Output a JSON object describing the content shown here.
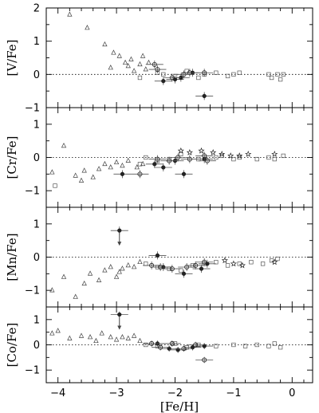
{
  "chart_data": {
    "type": "scatter",
    "xlabel": "[Fe/H]",
    "xlim": [
      -4.2,
      0.35
    ],
    "x_ticks": [
      "−4",
      "−3",
      "−2",
      "−1",
      "0"
    ],
    "panels": [
      {
        "ylabel": "[V/Fe]",
        "ylim": [
          -1.0,
          2.0
        ],
        "y_ticks": [
          "2",
          "1",
          "0",
          "−1"
        ],
        "series": [
          {
            "marker": "triangle",
            "points": [
              [
                -3.8,
                1.8
              ],
              [
                -3.5,
                1.4
              ],
              [
                -3.2,
                0.9
              ],
              [
                -3.05,
                0.65
              ],
              [
                -2.95,
                0.55
              ],
              [
                -2.85,
                0.35
              ],
              [
                -3.1,
                0.2
              ],
              [
                -2.75,
                0.45
              ],
              [
                -2.6,
                0.3
              ],
              [
                -2.5,
                0.15
              ],
              [
                -2.7,
                0.1
              ],
              [
                -2.55,
                0.55
              ],
              [
                -2.45,
                0.35
              ],
              [
                -2.8,
                0.25
              ]
            ]
          },
          {
            "marker": "square",
            "points": [
              [
                -2.6,
                -0.1
              ],
              [
                -2.3,
                0.05
              ],
              [
                -2.2,
                0.0
              ],
              [
                -2.0,
                -0.05
              ],
              [
                -1.8,
                0.1
              ],
              [
                -1.6,
                -0.1
              ],
              [
                -1.5,
                0.0
              ],
              [
                -1.3,
                0.05
              ],
              [
                -1.1,
                -0.05
              ],
              [
                -1.0,
                0.0
              ],
              [
                -0.9,
                0.05
              ],
              [
                -0.4,
                0.0
              ],
              [
                -0.35,
                -0.1
              ],
              [
                -0.25,
                0.0
              ],
              [
                -0.2,
                -0.15
              ],
              [
                -0.15,
                0.0
              ]
            ]
          },
          {
            "marker": "filled-circle",
            "points": [
              [
                -2.2,
                -0.2
              ],
              [
                -2.0,
                -0.15
              ],
              [
                -1.7,
                0.05
              ],
              [
                -1.5,
                -0.65
              ],
              [
                -1.9,
                -0.1
              ]
            ]
          },
          {
            "marker": "open-circle-errorbar",
            "points": [
              [
                -2.35,
                0.3
              ],
              [
                -2.3,
                0.15
              ],
              [
                -1.75,
                0.05
              ],
              [
                -1.5,
                0.05
              ],
              [
                -2.05,
                -0.1
              ],
              [
                -1.85,
                0.0
              ]
            ]
          }
        ]
      },
      {
        "ylabel": "[Cr/Fe]",
        "ylim": [
          -1.5,
          1.5
        ],
        "y_ticks": [
          "1",
          "0",
          "−1"
        ],
        "series": [
          {
            "marker": "triangle",
            "points": [
              [
                -4.1,
                -0.45
              ],
              [
                -3.9,
                0.35
              ],
              [
                -3.7,
                -0.55
              ],
              [
                -3.6,
                -0.7
              ],
              [
                -3.55,
                -0.4
              ],
              [
                -3.4,
                -0.6
              ],
              [
                -3.3,
                -0.35
              ],
              [
                -3.2,
                -0.2
              ],
              [
                -3.1,
                -0.3
              ],
              [
                -3.0,
                -0.15
              ],
              [
                -2.9,
                -0.25
              ],
              [
                -2.8,
                -0.1
              ],
              [
                -2.65,
                -0.3
              ],
              [
                -2.55,
                -0.2
              ]
            ]
          },
          {
            "marker": "square",
            "points": [
              [
                -4.05,
                -0.85
              ],
              [
                -2.6,
                -0.2
              ],
              [
                -2.5,
                0.0
              ],
              [
                -2.3,
                -0.1
              ],
              [
                -2.1,
                -0.05
              ],
              [
                -1.9,
                0.1
              ],
              [
                -1.6,
                -0.05
              ],
              [
                -1.3,
                0.0
              ],
              [
                -1.2,
                0.05
              ],
              [
                -1.0,
                -0.05
              ],
              [
                -0.9,
                0.0
              ],
              [
                -0.6,
                -0.05
              ],
              [
                -0.4,
                0.0
              ],
              [
                -0.3,
                -0.05
              ],
              [
                -0.15,
                0.05
              ]
            ]
          },
          {
            "marker": "star",
            "points": [
              [
                -1.9,
                0.2
              ],
              [
                -1.75,
                0.15
              ],
              [
                -1.55,
                0.2
              ],
              [
                -1.35,
                0.15
              ],
              [
                -1.2,
                0.1
              ],
              [
                -1.05,
                0.05
              ],
              [
                -0.9,
                0.05
              ],
              [
                -0.75,
                0.1
              ],
              [
                -0.3,
                0.1
              ]
            ]
          },
          {
            "marker": "filled-circle",
            "points": [
              [
                -2.9,
                -0.5
              ],
              [
                -2.35,
                -0.2
              ],
              [
                -2.2,
                -0.3
              ],
              [
                -2.0,
                -0.1
              ],
              [
                -1.85,
                -0.5
              ],
              [
                -1.5,
                -0.05
              ]
            ]
          },
          {
            "marker": "open-circle-errorbar",
            "points": [
              [
                -2.6,
                -0.5
              ],
              [
                -2.3,
                -0.05
              ],
              [
                -2.1,
                -0.1
              ],
              [
                -1.95,
                0.0
              ],
              [
                -1.75,
                -0.05
              ],
              [
                -1.5,
                0.05
              ],
              [
                -1.45,
                -0.1
              ]
            ]
          }
        ]
      },
      {
        "ylabel": "[Mn/Fe]",
        "ylim": [
          -1.5,
          1.5
        ],
        "y_ticks": [
          "1",
          "0",
          "−1"
        ],
        "series": [
          {
            "marker": "triangle",
            "points": [
              [
                -4.1,
                -1.0
              ],
              [
                -3.9,
                -0.6
              ],
              [
                -3.7,
                -1.2
              ],
              [
                -3.55,
                -0.8
              ],
              [
                -3.45,
                -0.5
              ],
              [
                -3.3,
                -0.7
              ],
              [
                -3.2,
                -0.4
              ],
              [
                -3.1,
                -0.3
              ],
              [
                -3.0,
                -0.6
              ],
              [
                -2.95,
                -0.45
              ],
              [
                -2.9,
                -0.35
              ],
              [
                -2.8,
                -0.25
              ],
              [
                -2.7,
                -0.3
              ],
              [
                -2.6,
                -0.15
              ]
            ]
          },
          {
            "marker": "square",
            "points": [
              [
                -2.5,
                -0.2
              ],
              [
                -2.3,
                -0.3
              ],
              [
                -2.1,
                -0.35
              ],
              [
                -1.9,
                -0.4
              ],
              [
                -1.7,
                -0.25
              ],
              [
                -1.5,
                -0.2
              ],
              [
                -1.3,
                -0.15
              ],
              [
                -1.1,
                -0.25
              ],
              [
                -0.9,
                -0.2
              ],
              [
                -0.7,
                -0.15
              ],
              [
                -0.5,
                -0.2
              ],
              [
                -0.35,
                -0.1
              ],
              [
                -0.25,
                -0.05
              ]
            ]
          },
          {
            "marker": "star",
            "points": [
              [
                -1.15,
                -0.1
              ],
              [
                -1.0,
                -0.2
              ],
              [
                -0.85,
                -0.25
              ],
              [
                -0.3,
                -0.15
              ]
            ]
          },
          {
            "marker": "filled-circle",
            "points": [
              [
                -2.95,
                0.8
              ],
              [
                -2.3,
                0.05
              ],
              [
                -2.2,
                -0.3
              ],
              [
                -1.85,
                -0.5
              ],
              [
                -1.55,
                -0.35
              ],
              [
                -1.45,
                -0.2
              ]
            ]
          },
          {
            "marker": "open-circle-errorbar",
            "points": [
              [
                -2.4,
                -0.25
              ],
              [
                -2.25,
                -0.3
              ],
              [
                -2.05,
                -0.35
              ],
              [
                -1.8,
                -0.3
              ],
              [
                -1.65,
                -0.25
              ],
              [
                -1.5,
                -0.15
              ]
            ]
          }
        ]
      },
      {
        "ylabel": "[Co/Fe]",
        "ylim": [
          -1.5,
          1.5
        ],
        "y_ticks": [
          "1",
          "0",
          "−1"
        ],
        "series": [
          {
            "marker": "triangle",
            "points": [
              [
                -4.1,
                0.45
              ],
              [
                -4.0,
                0.55
              ],
              [
                -3.8,
                0.25
              ],
              [
                -3.6,
                0.35
              ],
              [
                -3.45,
                0.3
              ],
              [
                -3.35,
                0.15
              ],
              [
                -3.25,
                0.45
              ],
              [
                -3.1,
                0.3
              ],
              [
                -3.0,
                0.2
              ],
              [
                -2.9,
                0.3
              ],
              [
                -2.8,
                0.25
              ],
              [
                -2.7,
                0.35
              ],
              [
                -2.6,
                0.15
              ]
            ]
          },
          {
            "marker": "square",
            "points": [
              [
                -2.5,
                0.0
              ],
              [
                -2.3,
                -0.05
              ],
              [
                -2.0,
                0.05
              ],
              [
                -1.8,
                -0.1
              ],
              [
                -1.6,
                0.0
              ],
              [
                -1.3,
                -0.05
              ],
              [
                -1.0,
                0.0
              ],
              [
                -0.8,
                -0.05
              ],
              [
                -0.6,
                0.0
              ],
              [
                -0.4,
                -0.05
              ],
              [
                -0.3,
                0.05
              ],
              [
                -0.2,
                -0.1
              ]
            ]
          },
          {
            "marker": "filled-circle",
            "points": [
              [
                -2.95,
                1.2
              ],
              [
                -2.3,
                0.05
              ],
              [
                -2.1,
                -0.15
              ],
              [
                -1.95,
                -0.2
              ],
              [
                -1.7,
                -0.1
              ],
              [
                -1.5,
                -0.05
              ]
            ]
          },
          {
            "marker": "open-circle-errorbar",
            "points": [
              [
                -2.4,
                0.05
              ],
              [
                -2.25,
                -0.1
              ],
              [
                -2.05,
                0.05
              ],
              [
                -1.85,
                -0.15
              ],
              [
                -1.65,
                0.0
              ],
              [
                -1.5,
                -0.6
              ]
            ]
          }
        ]
      }
    ]
  }
}
